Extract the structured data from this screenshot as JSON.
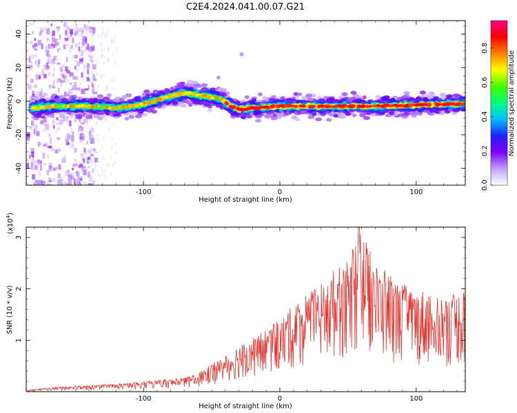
{
  "chart_data": [
    {
      "type": "heatmap",
      "title": "C2E4.2024.041.00.07.G21",
      "xlabel": "Height of straight line (km)",
      "ylabel": "Frequency (Hz)",
      "xlim": [
        -186,
        136
      ],
      "ylim": [
        -50,
        48
      ],
      "xticks": [
        -100,
        0,
        100
      ],
      "yticks": [
        40,
        20,
        0,
        -20,
        -40
      ],
      "ridge": {
        "description_points_x": [
          -181,
          -165,
          -140,
          -120,
          -100,
          -85,
          -70,
          -55,
          -45,
          -35,
          -30,
          -20,
          0,
          30,
          60,
          90,
          110,
          136
        ],
        "description_points_y": [
          -4,
          -3,
          -3,
          -4,
          -2,
          2,
          5,
          3,
          2,
          -3,
          -5,
          -4,
          -3,
          -3,
          -3,
          -2.5,
          -2,
          -1.5
        ]
      },
      "colorbar": {
        "label": "Normalized spectral amplitude",
        "ticks": [
          "0.0",
          "0.2",
          "0.4",
          "0.6",
          "0.8"
        ],
        "colors": [
          "#ffffff",
          "#c0a0ff",
          "#8000ff",
          "#2020ff",
          "#00c0ff",
          "#00ff80",
          "#40ff00",
          "#ffff00",
          "#ff8000",
          "#ff0000",
          "#ff0080"
        ]
      }
    },
    {
      "type": "line",
      "xlabel": "Height of straight line (km)",
      "ylabel": "SNR (10 * v/v)",
      "scale_label": "(x10",
      "scale_exp": "4",
      "scale_close": ")",
      "xlim": [
        -186,
        136
      ],
      "ylim": [
        0,
        3.2
      ],
      "xticks": [
        -100,
        0,
        100
      ],
      "yticks": [
        1,
        2,
        3
      ],
      "series": [
        {
          "name": "SNR",
          "color": "#e8302a",
          "envelope_x": [
            -186,
            -160,
            -140,
            -120,
            -100,
            -80,
            -65,
            -50,
            -40,
            -30,
            -20,
            -10,
            0,
            10,
            20,
            30,
            40,
            50,
            60,
            70,
            80,
            90,
            100,
            110,
            120,
            136
          ],
          "envelope_y": [
            0.03,
            0.1,
            0.12,
            0.15,
            0.2,
            0.25,
            0.3,
            0.55,
            0.7,
            0.95,
            1.05,
            1.25,
            1.4,
            1.7,
            1.9,
            2.1,
            2.4,
            2.55,
            3.2,
            2.5,
            2.3,
            2.1,
            2.0,
            2.0,
            1.9,
            2.0
          ]
        }
      ]
    }
  ]
}
